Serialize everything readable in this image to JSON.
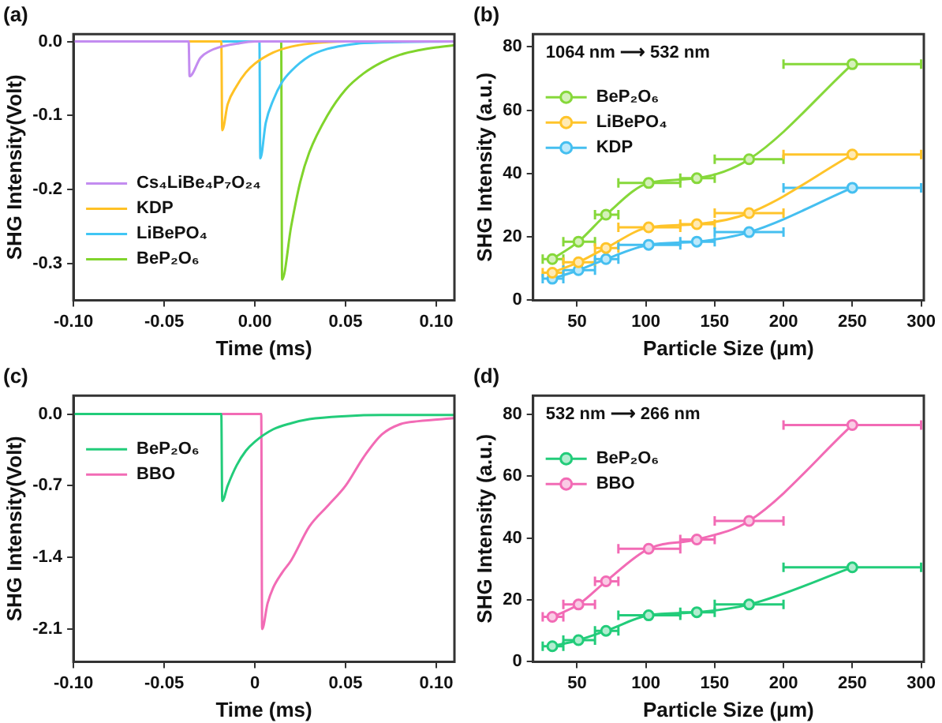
{
  "chart_data": [
    {
      "type": "line",
      "title": "(a)",
      "xlabel": "Time (ms)",
      "ylabel": "SHG Intensity(Volt)",
      "xlim": [
        -0.1,
        0.11
      ],
      "ylim": [
        -0.35,
        0.01
      ],
      "xticks": [
        {
          "value": -0.1,
          "label": "-0.10"
        },
        {
          "value": -0.05,
          "label": "-0.05"
        },
        {
          "value": 0,
          "label": "0.00"
        },
        {
          "value": 0.05,
          "label": "0.05"
        },
        {
          "value": 0.1,
          "label": "0.10"
        }
      ],
      "yticks": [
        {
          "value": 0,
          "label": "0.0"
        },
        -0.1,
        -0.2,
        -0.3
      ],
      "series": [
        {
          "name": "Cs₄LiBe₄P₇O₂₄",
          "color": "#c38cf0",
          "x": [
            -0.1,
            -0.0365,
            -0.036,
            -0.03,
            -0.025,
            -0.02,
            -0.01,
            0,
            0.11
          ],
          "values": [
            0,
            0,
            -0.047,
            -0.022,
            -0.013,
            -0.008,
            -0.003,
            0,
            0
          ]
        },
        {
          "name": "KDP",
          "color": "#ffc125",
          "x": [
            -0.1,
            -0.0185,
            -0.018,
            -0.015,
            -0.01,
            -0.005,
            0,
            0.01,
            0.02,
            0.03,
            0.05,
            0.11
          ],
          "values": [
            0,
            0,
            -0.12,
            -0.085,
            -0.06,
            -0.042,
            -0.03,
            -0.015,
            -0.007,
            -0.003,
            0,
            0
          ]
        },
        {
          "name": "LiBePO₄",
          "color": "#40c6f4",
          "x": [
            -0.1,
            0.0025,
            0.003,
            0.006,
            0.01,
            0.015,
            0.02,
            0.03,
            0.04,
            0.05,
            0.06,
            0.11
          ],
          "values": [
            0,
            0,
            -0.158,
            -0.11,
            -0.08,
            -0.055,
            -0.04,
            -0.02,
            -0.01,
            -0.005,
            -0.002,
            0
          ]
        },
        {
          "name": "BeP₂O₆",
          "color": "#80d42c",
          "x": [
            -0.1,
            0.0145,
            0.015,
            0.02,
            0.025,
            0.03,
            0.04,
            0.05,
            0.06,
            0.07,
            0.08,
            0.09,
            0.1,
            0.11
          ],
          "values": [
            0,
            0,
            -0.322,
            -0.25,
            -0.19,
            -0.15,
            -0.1,
            -0.065,
            -0.043,
            -0.028,
            -0.018,
            -0.012,
            -0.008,
            -0.005
          ]
        }
      ],
      "legend": "bottom left",
      "marker": "none",
      "grid": false
    },
    {
      "type": "line",
      "title": "(b)",
      "xlabel": "Particle Size (μm)",
      "ylabel": "SHG Intensity (a.u.)",
      "annotations": [
        "1064 nm ⟶ 532 nm"
      ],
      "xlim": [
        18,
        302
      ],
      "ylim": [
        0,
        84
      ],
      "xticks": [
        50,
        100,
        150,
        200,
        250,
        300
      ],
      "yticks": [
        0,
        20,
        40,
        60,
        80
      ],
      "x": [
        32,
        51,
        71,
        102,
        137,
        175,
        250
      ],
      "series": [
        {
          "name": "BeP₂O₆",
          "color": "#86d83a",
          "values": [
            13,
            18.5,
            27,
            37,
            38.5,
            44.5,
            74.5
          ],
          "xerrors": [
            [
              25,
              40
            ],
            [
              40,
              63
            ],
            [
              63,
              80
            ],
            [
              80,
              125
            ],
            [
              125,
              150
            ],
            [
              150,
              200
            ],
            [
              200,
              300
            ]
          ]
        },
        {
          "name": "LiBePO₄",
          "color": "#ffc42a",
          "values": [
            8.7,
            12,
            16.5,
            23,
            24,
            27.5,
            46
          ],
          "xerrors": [
            [
              25,
              40
            ],
            [
              40,
              63
            ],
            [
              63,
              80
            ],
            [
              80,
              125
            ],
            [
              125,
              150
            ],
            [
              150,
              200
            ],
            [
              200,
              300
            ]
          ]
        },
        {
          "name": "KDP",
          "color": "#45bff0",
          "values": [
            6.8,
            9.5,
            13,
            17.5,
            18.5,
            21.5,
            35.5
          ],
          "xerrors": [
            [
              25,
              40
            ],
            [
              40,
              63
            ],
            [
              63,
              80
            ],
            [
              80,
              125
            ],
            [
              125,
              150
            ],
            [
              150,
              200
            ],
            [
              200,
              300
            ]
          ]
        }
      ],
      "legend": "top left",
      "marker": "circle",
      "grid": false
    },
    {
      "type": "line",
      "title": "(c)",
      "xlabel": "Time (ms)",
      "ylabel": "SHG Intensity(Volt)",
      "xlim": [
        -0.1,
        0.11
      ],
      "ylim": [
        -2.42,
        0.18
      ],
      "xticks": [
        {
          "value": -0.1,
          "label": "-0.10"
        },
        {
          "value": -0.05,
          "label": "-0.05"
        },
        0,
        {
          "value": 0.05,
          "label": "0.05"
        },
        {
          "value": 0.1,
          "label": "0.10"
        }
      ],
      "yticks": [
        {
          "value": 0,
          "label": "0.0"
        },
        -0.7,
        -1.4,
        -2.1
      ],
      "series": [
        {
          "name": "BeP₂O₆",
          "color": "#22cc7a",
          "x": [
            -0.1,
            -0.0185,
            -0.018,
            -0.015,
            -0.01,
            -0.005,
            0,
            0.01,
            0.02,
            0.03,
            0.05,
            0.07,
            0.11
          ],
          "values": [
            0,
            0,
            -0.85,
            -0.7,
            -0.5,
            -0.36,
            -0.27,
            -0.15,
            -0.09,
            -0.05,
            -0.02,
            -0.01,
            -0.01
          ]
        },
        {
          "name": "BBO",
          "color": "#f26bb5",
          "x": [
            -0.1,
            0.0035,
            0.004,
            0.007,
            0.01,
            0.015,
            0.02,
            0.03,
            0.04,
            0.05,
            0.06,
            0.07,
            0.08,
            0.09,
            0.11
          ],
          "values": [
            0,
            0,
            -2.1,
            -1.85,
            -1.7,
            -1.55,
            -1.43,
            -1.1,
            -0.9,
            -0.7,
            -0.42,
            -0.2,
            -0.1,
            -0.07,
            -0.04
          ]
        }
      ],
      "legend": "top left",
      "marker": "none",
      "grid": false
    },
    {
      "type": "line",
      "title": "(d)",
      "xlabel": "Particle Size (μm)",
      "ylabel": "SHG Intensity (a.u.)",
      "annotations": [
        "532 nm ⟶ 266 nm"
      ],
      "xlim": [
        18,
        302
      ],
      "ylim": [
        0,
        86
      ],
      "xticks": [
        50,
        100,
        150,
        200,
        250,
        300
      ],
      "yticks": [
        0,
        20,
        40,
        60,
        80
      ],
      "x": [
        32,
        51,
        71,
        102,
        137,
        175,
        250
      ],
      "series": [
        {
          "name": "BeP₂O₆",
          "color": "#22cc7a",
          "values": [
            5,
            7,
            10,
            15,
            16,
            18.5,
            30.5
          ],
          "xerrors": [
            [
              25,
              40
            ],
            [
              40,
              63
            ],
            [
              63,
              80
            ],
            [
              80,
              125
            ],
            [
              125,
              150
            ],
            [
              150,
              200
            ],
            [
              200,
              300
            ]
          ]
        },
        {
          "name": "BBO",
          "color": "#f26bb5",
          "values": [
            14.5,
            18.5,
            26,
            36.5,
            39.5,
            45.5,
            76.5
          ],
          "xerrors": [
            [
              25,
              40
            ],
            [
              40,
              63
            ],
            [
              63,
              80
            ],
            [
              80,
              125
            ],
            [
              125,
              150
            ],
            [
              150,
              200
            ],
            [
              200,
              300
            ]
          ]
        }
      ],
      "legend": "top left",
      "marker": "circle",
      "grid": false
    }
  ]
}
